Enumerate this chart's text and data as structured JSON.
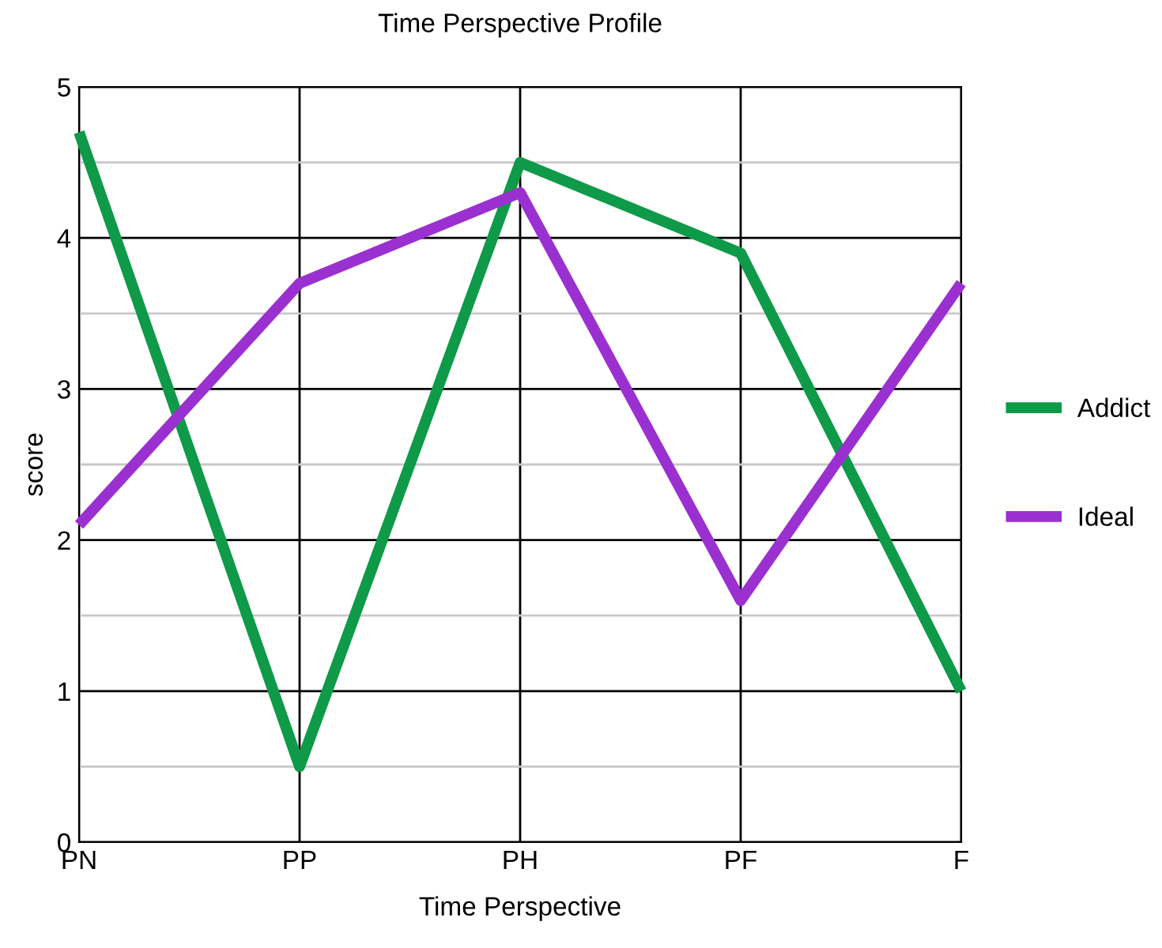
{
  "chart_data": {
    "type": "line",
    "title": "Time Perspective Profile",
    "xlabel": "Time Perspective",
    "ylabel": "score",
    "categories": [
      "PN",
      "PP",
      "PH",
      "PF",
      "F"
    ],
    "series": [
      {
        "name": "Addict",
        "color": "#0e9a48",
        "values": [
          4.7,
          0.5,
          4.5,
          3.9,
          1.0
        ]
      },
      {
        "name": "Ideal",
        "color": "#9b30d0",
        "values": [
          2.1,
          3.7,
          4.3,
          1.6,
          3.7
        ]
      }
    ],
    "ylim": [
      0,
      5
    ],
    "yticks": [
      0,
      {
        "value": 0.5,
        "label": null
      },
      1,
      {
        "value": 1.5,
        "label": null
      },
      2,
      {
        "value": 2.5,
        "label": null
      },
      3,
      {
        "value": 3.5,
        "label": null
      },
      4,
      {
        "value": 4.5,
        "label": null
      },
      5
    ],
    "grid": true,
    "legend": "right",
    "marker": "none",
    "line_style": "solid"
  }
}
